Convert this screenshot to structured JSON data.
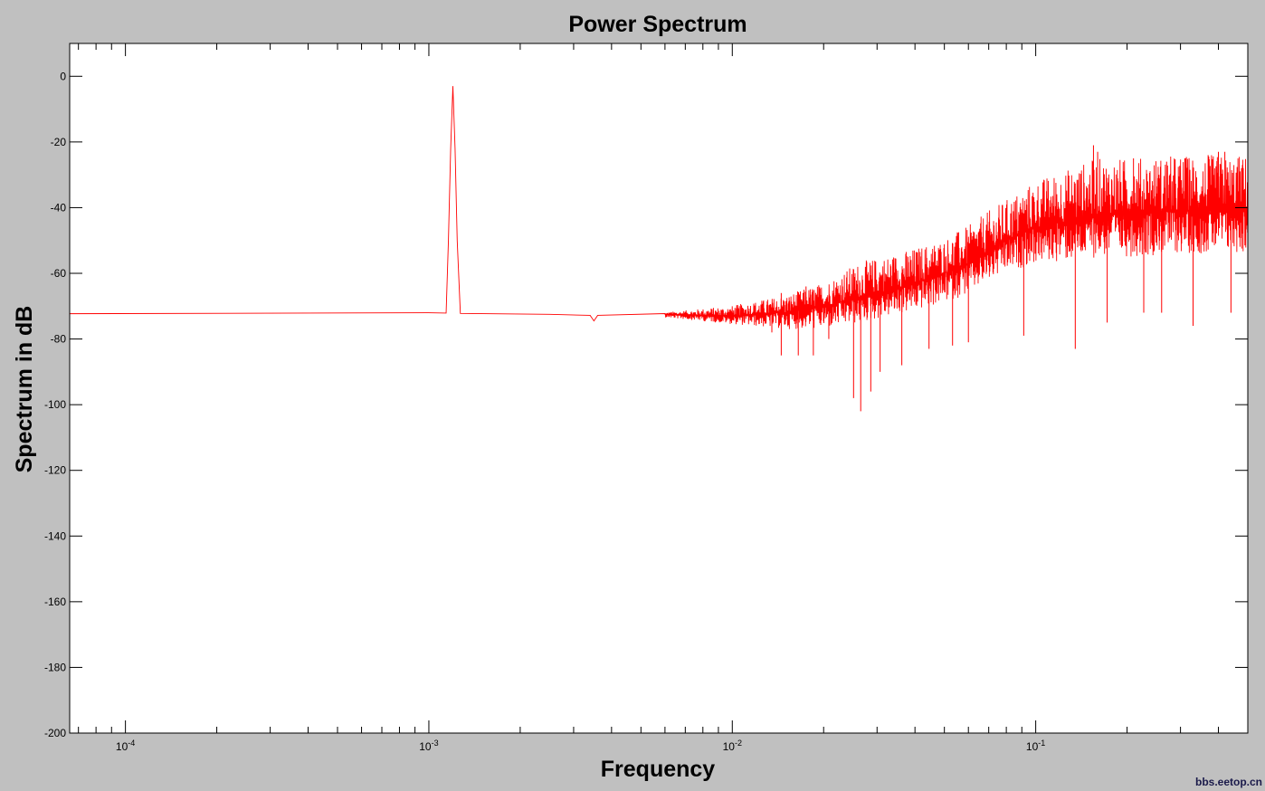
{
  "chart_data": {
    "type": "line",
    "title": "Power Spectrum",
    "xlabel": "Frequency",
    "ylabel": "Spectrum in dB",
    "x_scale": "log",
    "xlim": [
      6.55e-05,
      0.5
    ],
    "ylim": [
      -200,
      10
    ],
    "x_ticks": [
      {
        "value": 0.0001,
        "base": "10",
        "exp": "-4"
      },
      {
        "value": 0.001,
        "base": "10",
        "exp": "-3"
      },
      {
        "value": 0.01,
        "base": "10",
        "exp": "-2"
      },
      {
        "value": 0.1,
        "base": "10",
        "exp": "-1"
      }
    ],
    "y_ticks": [
      0,
      -20,
      -40,
      -60,
      -80,
      -100,
      -120,
      -140,
      -160,
      -180,
      -200
    ],
    "grid": false,
    "colors": {
      "line": "#ff0000",
      "background": "#c0c0c0",
      "axes": "#ffffff"
    },
    "series": [
      {
        "points": [
          [
            6.55e-05,
            -72.3
          ],
          [
            0.000995,
            -72.0
          ],
          [
            0.00114,
            -72.1
          ],
          [
            0.00116,
            -50
          ],
          [
            0.00118,
            -22
          ],
          [
            0.0012,
            -3
          ],
          [
            0.00122,
            -22
          ],
          [
            0.00124,
            -50
          ],
          [
            0.00127,
            -72.2
          ],
          [
            0.0025,
            -72.5
          ],
          [
            0.0034,
            -72.8
          ],
          [
            0.0035,
            -74.5
          ],
          [
            0.0036,
            -72.8
          ],
          [
            0.006,
            -72.6
          ],
          [
            0.01,
            -73
          ],
          [
            0.015,
            -72
          ],
          [
            0.02,
            -70
          ],
          [
            0.03,
            -66
          ],
          [
            0.04,
            -63
          ],
          [
            0.05,
            -60
          ],
          [
            0.06,
            -57
          ],
          [
            0.07,
            -53
          ],
          [
            0.08,
            -50
          ],
          [
            0.1,
            -46
          ],
          [
            0.13,
            -44
          ],
          [
            0.16,
            -42
          ],
          [
            0.2,
            -42
          ],
          [
            0.3,
            -41
          ],
          [
            0.5,
            -41
          ]
        ],
        "noise_band": [
          [
            0.006,
            0.8,
            0.8
          ],
          [
            0.01,
            2.5,
            3.5
          ],
          [
            0.015,
            5,
            6
          ],
          [
            0.02,
            7,
            8
          ],
          [
            0.026,
            8,
            12
          ],
          [
            0.03,
            8,
            12
          ],
          [
            0.05,
            9,
            12
          ],
          [
            0.08,
            10,
            14
          ],
          [
            0.1,
            11,
            16
          ],
          [
            0.15,
            13,
            19
          ],
          [
            0.2,
            13,
            19
          ],
          [
            0.3,
            13,
            19
          ],
          [
            0.5,
            13,
            19
          ]
        ],
        "dips": [
          [
            0.0265,
            -102
          ],
          [
            0.0251,
            -98
          ],
          [
            0.0286,
            -96
          ],
          [
            0.0307,
            -90
          ],
          [
            0.0362,
            -88
          ],
          [
            0.0145,
            -85
          ],
          [
            0.0165,
            -85
          ],
          [
            0.0185,
            -85
          ],
          [
            0.0135,
            -78
          ],
          [
            0.0208,
            -80
          ],
          [
            0.0445,
            -83
          ],
          [
            0.0532,
            -82
          ],
          [
            0.06,
            -81
          ],
          [
            0.135,
            -83
          ],
          [
            0.0913,
            -79
          ],
          [
            0.33,
            -76
          ],
          [
            0.172,
            -75
          ],
          [
            0.44,
            -72
          ],
          [
            0.227,
            -72
          ],
          [
            0.26,
            -72
          ]
        ],
        "peaks": [
          [
            0.155,
            -21
          ],
          [
            0.16,
            -23
          ],
          [
            0.42,
            -23
          ],
          [
            0.37,
            -24
          ],
          [
            0.21,
            -25
          ],
          [
            0.4,
            -23
          ],
          [
            0.4,
            -25
          ],
          [
            0.27,
            -26
          ],
          [
            0.31,
            -25
          ],
          [
            0.48,
            -27
          ],
          [
            0.0145,
            -66
          ],
          [
            0.0175,
            -64
          ]
        ]
      }
    ]
  },
  "watermark": "bbs.eetop.cn"
}
